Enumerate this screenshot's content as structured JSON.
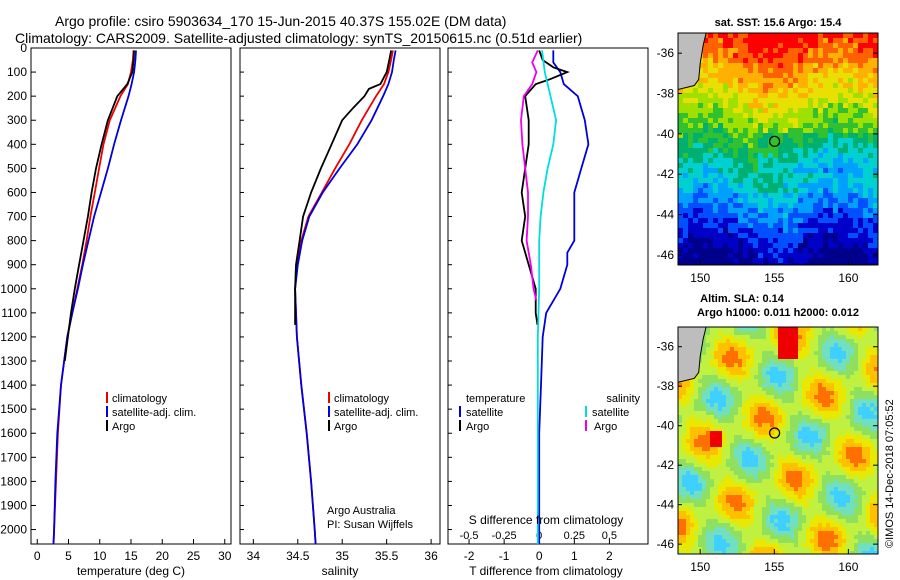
{
  "title": {
    "line1": "Argo profile: csiro 5903634_170 15-Jun-2015 40.37S 155.02E (DM data)",
    "line2": "Climatology: CARS2009. Satellite-adjusted climatology: synTS_20150615.nc (0.51d earlier)"
  },
  "colors": {
    "argo": "#000000",
    "climatology": "#ee0000",
    "satellite": "#0000dd",
    "sat_salinity": "#00dddd",
    "argo_salinity": "#ee00ee"
  },
  "chart_data": [
    {
      "type": "line",
      "id": "temperature",
      "xlabel": "temperature (deg C)",
      "ylabel": "depth",
      "xlim": [
        -1,
        31
      ],
      "ylim": [
        0,
        2060
      ],
      "xticks": [
        0,
        5,
        10,
        15,
        20,
        25,
        30
      ],
      "yticks": [
        0,
        100,
        200,
        300,
        400,
        500,
        600,
        700,
        800,
        900,
        1000,
        1100,
        1200,
        1300,
        1400,
        1500,
        1600,
        1700,
        1800,
        1900,
        2000
      ],
      "legend": {
        "placement": "lower-middle",
        "entries": [
          "climatology",
          "satellite-adj. clim.",
          "Argo"
        ]
      },
      "series": [
        {
          "name": "climatology",
          "color": "#ee0000",
          "depth": [
            10,
            50,
            100,
            150,
            200,
            300,
            400,
            500,
            600,
            700,
            800,
            900,
            1000,
            1100,
            1200,
            1400,
            1600,
            1800,
            2000,
            2060
          ],
          "values": [
            15.4,
            15.3,
            15.0,
            14.5,
            13.3,
            11.6,
            10.6,
            9.9,
            9.2,
            8.5,
            7.9,
            7.2,
            6.4,
            5.6,
            4.8,
            3.8,
            3.3,
            3.0,
            2.7,
            2.6
          ]
        },
        {
          "name": "satellite-adj. clim.",
          "color": "#0000dd",
          "depth": [
            10,
            50,
            100,
            150,
            200,
            300,
            400,
            500,
            600,
            700,
            800,
            900,
            1000,
            1100,
            1200,
            1400,
            1600,
            1800,
            2000,
            2060
          ],
          "values": [
            15.8,
            15.7,
            15.5,
            15.1,
            14.6,
            13.4,
            12.3,
            11.3,
            10.2,
            9.1,
            8.2,
            7.3,
            6.5,
            5.6,
            4.8,
            3.8,
            3.2,
            2.9,
            2.7,
            2.6
          ]
        },
        {
          "name": "Argo",
          "color": "#000000",
          "depth": [
            10,
            50,
            100,
            150,
            200,
            300,
            400,
            500,
            600,
            700,
            800,
            900,
            1000,
            1100,
            1200,
            1300
          ],
          "values": [
            15.5,
            15.4,
            15.2,
            14.4,
            12.8,
            11.3,
            10.3,
            9.4,
            8.7,
            8.1,
            7.4,
            6.7,
            6.0,
            5.4,
            4.9,
            4.4
          ]
        }
      ]
    },
    {
      "type": "line",
      "id": "salinity",
      "xlabel": "salinity",
      "xlim": [
        33.85,
        36.1
      ],
      "ylim": [
        0,
        2060
      ],
      "xticks": [
        34,
        34.5,
        35,
        35.5,
        36
      ],
      "legend": {
        "placement": "lower-middle",
        "entries": [
          "climatology",
          "satellite-adj. clim.",
          "Argo"
        ]
      },
      "credit": [
        "Argo Australia",
        "PI: Susan Wijffels"
      ],
      "series": [
        {
          "name": "climatology",
          "color": "#ee0000",
          "depth": [
            10,
            50,
            100,
            150,
            200,
            300,
            400,
            500,
            600,
            700,
            800,
            900,
            1000,
            1200,
            1400,
            1600,
            1800,
            2000,
            2060
          ],
          "values": [
            35.57,
            35.55,
            35.52,
            35.47,
            35.38,
            35.22,
            35.08,
            34.92,
            34.77,
            34.62,
            34.54,
            34.49,
            34.47,
            34.49,
            34.54,
            34.6,
            34.65,
            34.69,
            34.7
          ]
        },
        {
          "name": "satellite-adj. clim.",
          "color": "#0000dd",
          "depth": [
            10,
            50,
            100,
            150,
            200,
            300,
            400,
            500,
            600,
            700,
            800,
            900,
            1000,
            1200,
            1400,
            1600,
            1800,
            2000,
            2060
          ],
          "values": [
            35.6,
            35.58,
            35.56,
            35.52,
            35.46,
            35.33,
            35.17,
            34.97,
            34.78,
            34.63,
            34.55,
            34.5,
            34.47,
            34.49,
            34.54,
            34.6,
            34.65,
            34.69,
            34.7
          ]
        },
        {
          "name": "Argo",
          "color": "#000000",
          "depth": [
            10,
            50,
            100,
            150,
            170,
            200,
            250,
            300,
            400,
            500,
            600,
            700,
            800,
            900,
            1000,
            1100,
            1150
          ],
          "values": [
            35.55,
            35.53,
            35.5,
            35.43,
            35.3,
            35.25,
            35.12,
            35.0,
            34.88,
            34.76,
            34.65,
            34.56,
            34.52,
            34.48,
            34.47,
            34.47,
            34.47
          ]
        }
      ]
    },
    {
      "type": "line",
      "id": "difference",
      "xlabel": "T difference from climatology",
      "xlabel_top": "S difference from climatology",
      "xlim": [
        -2.6,
        3.1
      ],
      "ylim": [
        0,
        2060
      ],
      "xticks": [
        -2,
        -1,
        0,
        1,
        2
      ],
      "xticks_s": [
        "-0.5",
        "-0.25",
        "0",
        "0.25",
        "0.5"
      ],
      "legend": {
        "placement": "lower-middle",
        "temperature_title": "temperature",
        "salinity_title": "salinity",
        "entries": [
          "satellite",
          "Argo",
          "satellite",
          "Argo"
        ]
      },
      "series": [
        {
          "name": "T satellite",
          "color": "#0000dd",
          "depth": [
            10,
            60,
            100,
            150,
            200,
            300,
            400,
            500,
            600,
            700,
            800,
            850,
            900,
            1000,
            1100,
            1200,
            1400,
            1600,
            1800,
            2000,
            2060
          ],
          "values": [
            0.4,
            0.4,
            0.6,
            0.7,
            1.1,
            1.3,
            1.4,
            1.2,
            1.0,
            1.0,
            1.0,
            0.8,
            0.8,
            0.6,
            0.2,
            0.1,
            0.05,
            0.0,
            0.0,
            0.0,
            0.0
          ]
        },
        {
          "name": "T Argo",
          "color": "#000000",
          "depth": [
            10,
            50,
            80,
            100,
            130,
            150,
            200,
            300,
            400,
            500,
            600,
            700,
            800,
            900,
            1000,
            1100,
            1150
          ],
          "values": [
            0.0,
            0.1,
            0.4,
            0.8,
            0.3,
            -0.1,
            -0.4,
            -0.3,
            -0.3,
            -0.4,
            -0.5,
            -0.4,
            -0.5,
            -0.3,
            -0.1,
            -0.1,
            -0.05
          ]
        },
        {
          "name": "S satellite",
          "color": "#00dddd",
          "depth": [
            10,
            100,
            200,
            300,
            400,
            500,
            600,
            700,
            800,
            900,
            1000,
            1200,
            1400,
            1600,
            1800,
            2000,
            2060
          ],
          "values": [
            0.02,
            0.04,
            0.08,
            0.12,
            0.1,
            0.06,
            0.03,
            0.01,
            0.0,
            0.0,
            0.0,
            -0.01,
            -0.01,
            -0.01,
            -0.01,
            -0.01,
            -0.01
          ]
        },
        {
          "name": "S Argo",
          "color": "#ee00ee",
          "depth": [
            10,
            60,
            100,
            150,
            200,
            300,
            400,
            500,
            600,
            700,
            800,
            900,
            1000,
            1050
          ],
          "values": [
            -0.01,
            -0.05,
            -0.02,
            -0.05,
            -0.11,
            -0.13,
            -0.12,
            -0.1,
            -0.08,
            -0.08,
            -0.09,
            -0.06,
            -0.04,
            -0.02
          ]
        }
      ]
    },
    {
      "type": "heatmap",
      "id": "sst_map",
      "title": "sat. SST: 15.6 Argo: 15.4",
      "xlim": [
        148.5,
        162
      ],
      "ylim": [
        -46.5,
        -35
      ],
      "xticks": [
        150,
        155,
        160
      ],
      "yticks": [
        -36,
        -38,
        -40,
        -42,
        -44,
        -46
      ],
      "argo_position": [
        155.02,
        -40.37
      ]
    },
    {
      "type": "heatmap",
      "id": "sla_map",
      "title_line1": "Altim. SLA: 0.14",
      "title_line2": "Argo h1000: 0.011 h2000: 0.012",
      "xlim": [
        148.5,
        162
      ],
      "ylim": [
        -46.5,
        -35
      ],
      "xticks": [
        150,
        155,
        160
      ],
      "yticks": [
        -36,
        -38,
        -40,
        -42,
        -44,
        -46
      ],
      "argo_position": [
        155.02,
        -40.37
      ]
    }
  ],
  "watermark": "©IMOS 14-Dec-2018 07:05:52"
}
